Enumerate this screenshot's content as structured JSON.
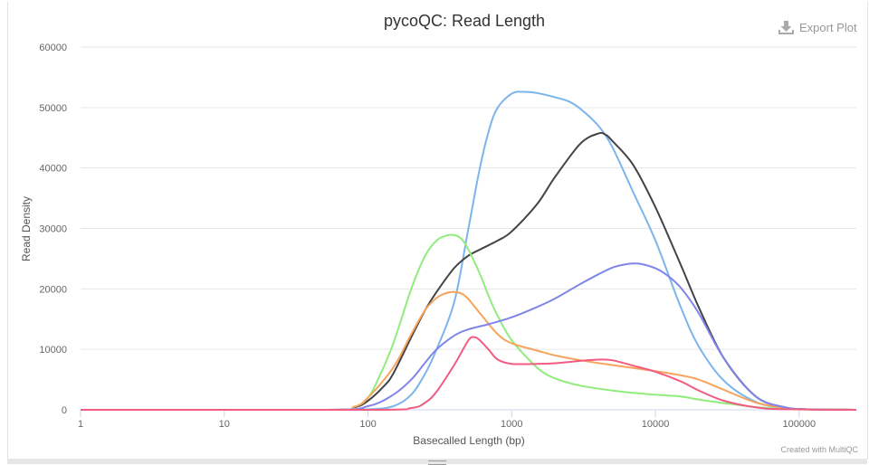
{
  "header": {
    "export_label": "Export Plot",
    "credit": "Created with MultiQC"
  },
  "icons": {
    "export": "download-icon"
  },
  "chart_data": {
    "type": "line",
    "title": "pycoQC: Read Length",
    "xlabel": "Basecalled Length (bp)",
    "ylabel": "Read Density",
    "x_scale": "log",
    "xlim": [
      1,
      250000
    ],
    "ylim": [
      0,
      60000
    ],
    "x_ticks": [
      "1",
      "10",
      "100",
      "1000",
      "10000",
      "100000"
    ],
    "y_ticks": [
      "0",
      "10000",
      "20000",
      "30000",
      "40000",
      "50000",
      "60000"
    ],
    "grid": true,
    "legend": "none",
    "series": [
      {
        "color": "#7cb5ec",
        "points": [
          [
            1,
            0
          ],
          [
            50,
            0
          ],
          [
            100,
            80
          ],
          [
            150,
            600
          ],
          [
            200,
            2500
          ],
          [
            250,
            6000
          ],
          [
            300,
            10000
          ],
          [
            400,
            18000
          ],
          [
            500,
            30000
          ],
          [
            600,
            40000
          ],
          [
            700,
            46500
          ],
          [
            800,
            50000
          ],
          [
            1000,
            52300
          ],
          [
            1200,
            52600
          ],
          [
            1500,
            52400
          ],
          [
            2000,
            51700
          ],
          [
            2500,
            51000
          ],
          [
            3000,
            49800
          ],
          [
            4000,
            47000
          ],
          [
            5000,
            43500
          ],
          [
            7000,
            36000
          ],
          [
            10000,
            28000
          ],
          [
            15000,
            17000
          ],
          [
            20000,
            10500
          ],
          [
            30000,
            4800
          ],
          [
            50000,
            1300
          ],
          [
            80000,
            300
          ],
          [
            120000,
            60
          ],
          [
            250000,
            0
          ]
        ]
      },
      {
        "color": "#434348",
        "points": [
          [
            1,
            0
          ],
          [
            50,
            0
          ],
          [
            80,
            400
          ],
          [
            100,
            1500
          ],
          [
            130,
            4000
          ],
          [
            150,
            6000
          ],
          [
            200,
            12000
          ],
          [
            250,
            16500
          ],
          [
            300,
            19500
          ],
          [
            400,
            23500
          ],
          [
            500,
            25500
          ],
          [
            600,
            26500
          ],
          [
            800,
            28000
          ],
          [
            1000,
            29500
          ],
          [
            1500,
            34000
          ],
          [
            2000,
            38500
          ],
          [
            3000,
            44000
          ],
          [
            4000,
            45700
          ],
          [
            4500,
            45500
          ],
          [
            5000,
            44500
          ],
          [
            7000,
            40500
          ],
          [
            10000,
            33500
          ],
          [
            15000,
            24000
          ],
          [
            20000,
            17000
          ],
          [
            30000,
            8500
          ],
          [
            50000,
            2200
          ],
          [
            80000,
            400
          ],
          [
            120000,
            80
          ],
          [
            250000,
            0
          ]
        ]
      },
      {
        "color": "#90ed7d",
        "points": [
          [
            1,
            0
          ],
          [
            50,
            0
          ],
          [
            80,
            500
          ],
          [
            100,
            2000
          ],
          [
            120,
            5500
          ],
          [
            150,
            11000
          ],
          [
            200,
            20000
          ],
          [
            250,
            25500
          ],
          [
            300,
            28000
          ],
          [
            350,
            28800
          ],
          [
            400,
            28900
          ],
          [
            450,
            28200
          ],
          [
            500,
            26500
          ],
          [
            600,
            22500
          ],
          [
            700,
            18500
          ],
          [
            800,
            15500
          ],
          [
            1000,
            11500
          ],
          [
            1500,
            7000
          ],
          [
            2000,
            5200
          ],
          [
            3000,
            4000
          ],
          [
            5000,
            3200
          ],
          [
            7000,
            2800
          ],
          [
            10000,
            2500
          ],
          [
            15000,
            2200
          ],
          [
            20000,
            1700
          ],
          [
            30000,
            1100
          ],
          [
            50000,
            450
          ],
          [
            80000,
            150
          ],
          [
            120000,
            40
          ],
          [
            250000,
            0
          ]
        ]
      },
      {
        "color": "#f7a35c",
        "points": [
          [
            1,
            0
          ],
          [
            50,
            0
          ],
          [
            80,
            500
          ],
          [
            100,
            2000
          ],
          [
            150,
            7000
          ],
          [
            200,
            12500
          ],
          [
            250,
            16500
          ],
          [
            300,
            18500
          ],
          [
            350,
            19300
          ],
          [
            400,
            19500
          ],
          [
            450,
            19200
          ],
          [
            500,
            18300
          ],
          [
            600,
            16000
          ],
          [
            800,
            12500
          ],
          [
            1000,
            11000
          ],
          [
            1500,
            9800
          ],
          [
            2000,
            9000
          ],
          [
            3000,
            8200
          ],
          [
            5000,
            7400
          ],
          [
            10000,
            6400
          ],
          [
            15000,
            5700
          ],
          [
            20000,
            5000
          ],
          [
            30000,
            3300
          ],
          [
            50000,
            1200
          ],
          [
            80000,
            300
          ],
          [
            120000,
            60
          ],
          [
            250000,
            0
          ]
        ]
      },
      {
        "color": "#8085e9",
        "points": [
          [
            1,
            0
          ],
          [
            50,
            0
          ],
          [
            100,
            600
          ],
          [
            150,
            2500
          ],
          [
            200,
            5000
          ],
          [
            250,
            7800
          ],
          [
            300,
            10000
          ],
          [
            400,
            12300
          ],
          [
            500,
            13300
          ],
          [
            700,
            14200
          ],
          [
            1000,
            15300
          ],
          [
            1500,
            17000
          ],
          [
            2000,
            18400
          ],
          [
            3000,
            20800
          ],
          [
            4000,
            22400
          ],
          [
            5000,
            23500
          ],
          [
            6000,
            24000
          ],
          [
            7000,
            24200
          ],
          [
            8000,
            24100
          ],
          [
            10000,
            23400
          ],
          [
            12000,
            22300
          ],
          [
            15000,
            20200
          ],
          [
            20000,
            16000
          ],
          [
            30000,
            8500
          ],
          [
            50000,
            2200
          ],
          [
            80000,
            400
          ],
          [
            120000,
            80
          ],
          [
            250000,
            0
          ]
        ]
      },
      {
        "color": "#f15c80",
        "points": [
          [
            1,
            0
          ],
          [
            100,
            0
          ],
          [
            200,
            300
          ],
          [
            250,
            1200
          ],
          [
            300,
            3000
          ],
          [
            400,
            7500
          ],
          [
            500,
            11500
          ],
          [
            550,
            12000
          ],
          [
            600,
            11500
          ],
          [
            700,
            9800
          ],
          [
            800,
            8300
          ],
          [
            1000,
            7600
          ],
          [
            1500,
            7600
          ],
          [
            2000,
            7700
          ],
          [
            3000,
            8100
          ],
          [
            4000,
            8300
          ],
          [
            5000,
            8200
          ],
          [
            7000,
            7300
          ],
          [
            10000,
            6300
          ],
          [
            15000,
            4700
          ],
          [
            20000,
            3200
          ],
          [
            30000,
            1500
          ],
          [
            50000,
            400
          ],
          [
            80000,
            100
          ],
          [
            250000,
            0
          ]
        ]
      }
    ]
  }
}
